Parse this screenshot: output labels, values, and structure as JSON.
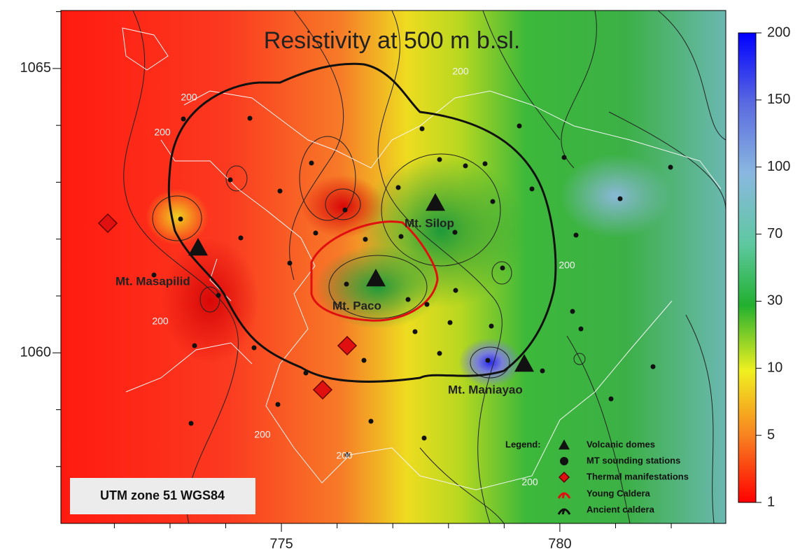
{
  "title": "Resistivity at 500 m b.sl.",
  "map": {
    "xlim": [
      771.04,
      782.98
    ],
    "ylim": [
      1057.0,
      1066.02
    ],
    "xticks": [
      775,
      780
    ],
    "yticks": [
      1060,
      1065
    ],
    "xticks_minor": [
      772,
      773,
      774,
      776,
      777,
      778,
      779,
      781,
      782
    ],
    "yticks_minor": [
      1058,
      1059,
      1061,
      1062,
      1063,
      1064,
      1066
    ],
    "places": [
      "Mt. Masapilid",
      "Mt. Silop",
      "Mt. Paco",
      "Mt. Maniayao"
    ],
    "contour_labels": [
      "200",
      "200",
      "200",
      "200",
      "200",
      "200",
      "200",
      "200"
    ],
    "projection": "UTM zone 51 WGS84"
  },
  "colorbar": {
    "ticks": [
      200,
      150,
      100,
      70,
      30,
      10,
      5,
      1
    ]
  },
  "legend": {
    "title": "Legend:",
    "items": [
      "Volcanic domes",
      "MT sounding stations",
      "Thermal manifestations",
      "Young Caldera",
      "Ancient caldera"
    ]
  }
}
